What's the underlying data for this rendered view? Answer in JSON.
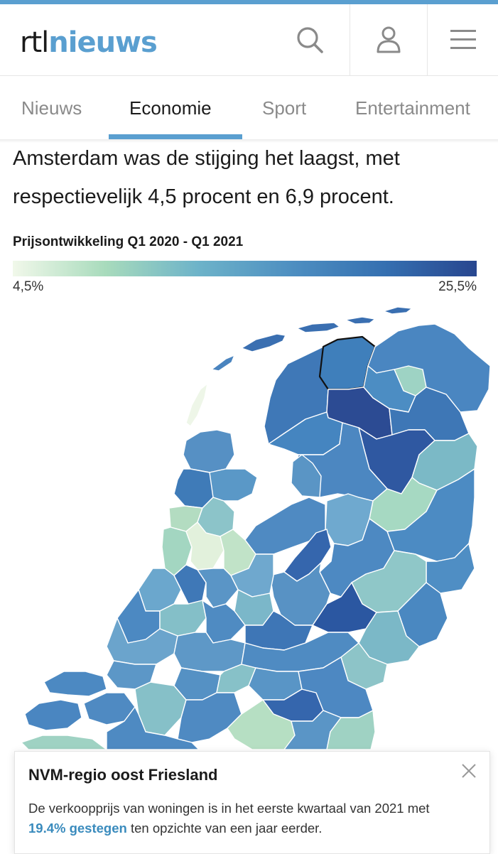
{
  "header": {
    "logo_part1": "rtl",
    "logo_part2": "nieuws",
    "icons": [
      "search-icon",
      "user-icon",
      "menu-icon"
    ]
  },
  "nav": {
    "tabs": [
      {
        "label": "Nieuws",
        "active": false
      },
      {
        "label": "Economie",
        "active": true
      },
      {
        "label": "Sport",
        "active": false
      },
      {
        "label": "Entertainment",
        "active": false
      }
    ]
  },
  "article": {
    "intro_text": "Amsterdam was de stijging het laagst, met respectievelijk 4,5 procent en 6,9 procent."
  },
  "legend": {
    "title": "Prijsontwikkeling Q1 2020 - Q1 2021",
    "min_label": "4,5%",
    "max_label": "25,5%",
    "colors": [
      "#f1f8ea",
      "#a8dbbc",
      "#6db3c9",
      "#4e8fc1",
      "#3570b1",
      "#28468f"
    ]
  },
  "tooltip": {
    "title": "NVM-regio oost Friesland",
    "text_before": "De verkoopprijs van woningen is in het eerste kwartaal van 2021 met ",
    "highlight": "19.4% gestegen",
    "text_after": " ten opzichte van een jaar eerder."
  },
  "colors": {
    "accent": "#5a9fd0",
    "highlight_text": "#3a8bbd"
  }
}
